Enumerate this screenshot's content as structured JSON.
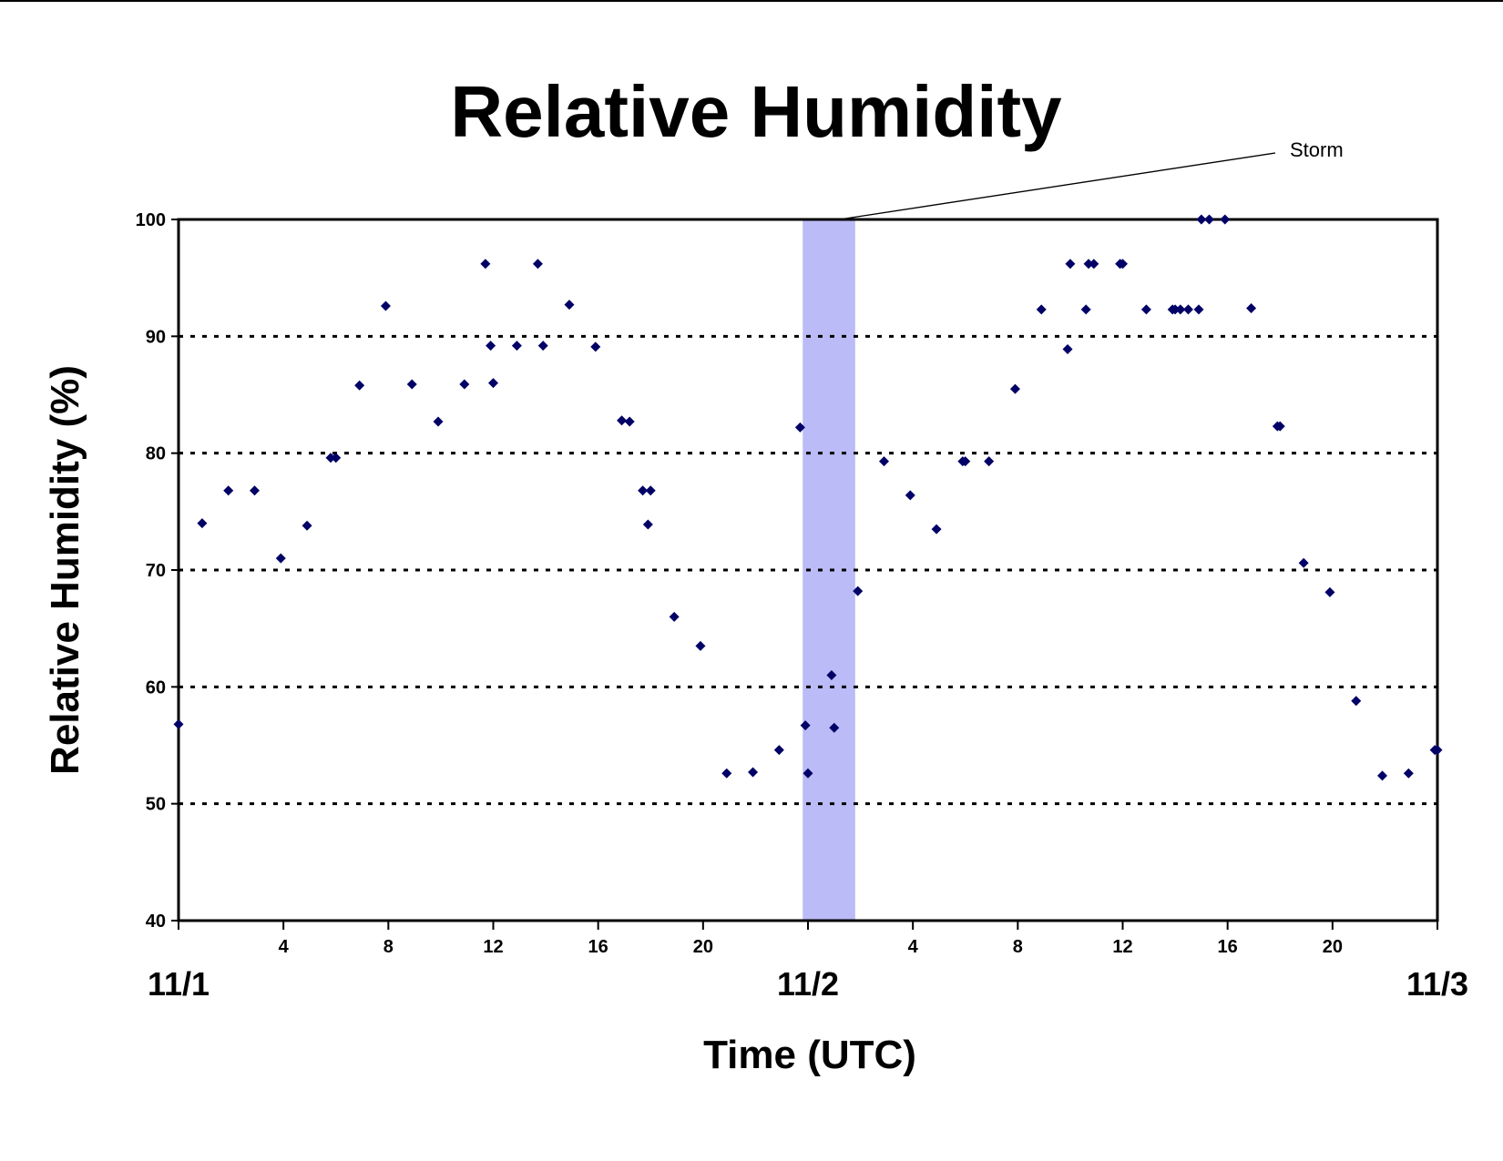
{
  "chart_data": {
    "type": "scatter",
    "title": "Relative Humidity",
    "xlabel": "Time (UTC)",
    "ylabel": "Relative Humidity (%)",
    "ylim": [
      40,
      100
    ],
    "xlim_hours": [
      0,
      48
    ],
    "yticks": [
      40,
      50,
      60,
      70,
      80,
      90,
      100
    ],
    "x_tick_hours": [
      0,
      4,
      8,
      12,
      16,
      20,
      24,
      28,
      32,
      36,
      40,
      44,
      48
    ],
    "x_tick_labels": [
      "",
      "4",
      "8",
      "12",
      "16",
      "20",
      "",
      "4",
      "8",
      "12",
      "16",
      "20",
      ""
    ],
    "date_labels": [
      {
        "label": "11/1",
        "hour": 0
      },
      {
        "label": "11/2",
        "hour": 24
      },
      {
        "label": "11/3",
        "hour": 48
      }
    ],
    "gridlines": [
      50,
      60,
      70,
      80,
      90
    ],
    "grid_style": "dotted horizontal",
    "marker_color": "#000066",
    "storm_band": {
      "label": "Storm",
      "start_hour": 23.8,
      "end_hour": 25.8,
      "color": "#bbbbf7"
    },
    "series": [
      {
        "name": "",
        "points": [
          [
            0.0,
            56.8
          ],
          [
            0.9,
            74.0
          ],
          [
            1.9,
            76.8
          ],
          [
            2.9,
            76.8
          ],
          [
            3.9,
            71.0
          ],
          [
            4.9,
            73.8
          ],
          [
            5.8,
            79.6
          ],
          [
            6.0,
            79.6
          ],
          [
            6.9,
            85.8
          ],
          [
            7.9,
            92.6
          ],
          [
            8.9,
            85.9
          ],
          [
            9.9,
            82.7
          ],
          [
            10.9,
            85.9
          ],
          [
            11.7,
            96.2
          ],
          [
            11.9,
            89.2
          ],
          [
            12.0,
            86.0
          ],
          [
            12.9,
            89.2
          ],
          [
            13.7,
            96.2
          ],
          [
            13.9,
            89.2
          ],
          [
            14.9,
            92.7
          ],
          [
            15.9,
            89.1
          ],
          [
            16.9,
            82.8
          ],
          [
            17.2,
            82.7
          ],
          [
            17.7,
            76.8
          ],
          [
            17.9,
            73.9
          ],
          [
            18.0,
            76.8
          ],
          [
            18.9,
            66.0
          ],
          [
            19.9,
            63.5
          ],
          [
            20.9,
            52.6
          ],
          [
            21.9,
            52.7
          ],
          [
            22.9,
            54.6
          ],
          [
            23.7,
            82.2
          ],
          [
            23.9,
            56.7
          ],
          [
            24.0,
            52.6
          ],
          [
            24.9,
            61.0
          ],
          [
            25.0,
            56.5
          ],
          [
            25.9,
            68.2
          ],
          [
            26.9,
            79.3
          ],
          [
            27.9,
            76.4
          ],
          [
            28.9,
            73.5
          ],
          [
            29.9,
            79.3
          ],
          [
            30.0,
            79.3
          ],
          [
            30.9,
            79.3
          ],
          [
            31.9,
            85.5
          ],
          [
            32.9,
            92.3
          ],
          [
            33.9,
            88.9
          ],
          [
            34.0,
            96.2
          ],
          [
            34.6,
            92.3
          ],
          [
            34.7,
            96.2
          ],
          [
            34.9,
            96.2
          ],
          [
            35.9,
            96.2
          ],
          [
            36.0,
            96.2
          ],
          [
            36.9,
            92.3
          ],
          [
            37.9,
            92.3
          ],
          [
            38.0,
            92.3
          ],
          [
            38.2,
            92.3
          ],
          [
            38.5,
            92.3
          ],
          [
            38.9,
            92.3
          ],
          [
            39.0,
            100.0
          ],
          [
            39.3,
            100.0
          ],
          [
            39.9,
            100.0
          ],
          [
            40.9,
            92.4
          ],
          [
            41.9,
            82.3
          ],
          [
            42.0,
            82.3
          ],
          [
            42.9,
            70.6
          ],
          [
            43.9,
            68.1
          ],
          [
            44.9,
            58.8
          ],
          [
            45.9,
            52.4
          ],
          [
            46.9,
            52.6
          ],
          [
            47.9,
            54.6
          ],
          [
            48.0,
            54.6
          ]
        ]
      }
    ]
  }
}
